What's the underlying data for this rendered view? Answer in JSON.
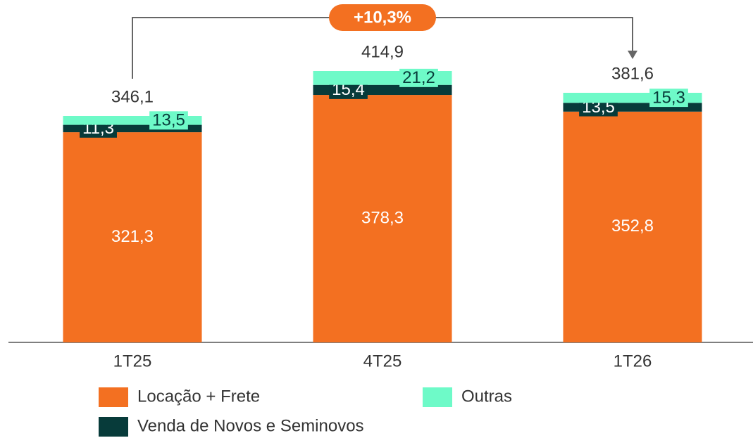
{
  "chart_data": {
    "type": "stacked_bar",
    "categories": [
      "1T25",
      "4T25",
      "1T26"
    ],
    "series": [
      {
        "name": "Locação + Frete",
        "color": "#F37021",
        "values": [
          321.3,
          378.3,
          352.8
        ],
        "value_labels": [
          "321,3",
          "378,3",
          "352,8"
        ]
      },
      {
        "name": "Venda de Novos e Seminovos",
        "color": "#073B3A",
        "values": [
          11.3,
          15.4,
          13.5
        ],
        "value_labels": [
          "11,3",
          "15,4",
          "13,5"
        ]
      },
      {
        "name": "Outras",
        "color": "#6EFAC8",
        "values": [
          13.5,
          21.2,
          15.3
        ],
        "value_labels": [
          "13,5",
          "21,2",
          "15,3"
        ]
      }
    ],
    "totals": [
      346.1,
      414.9,
      381.6
    ],
    "total_labels": [
      "346,1",
      "414,9",
      "381,6"
    ],
    "annotation": "+10,3%"
  }
}
